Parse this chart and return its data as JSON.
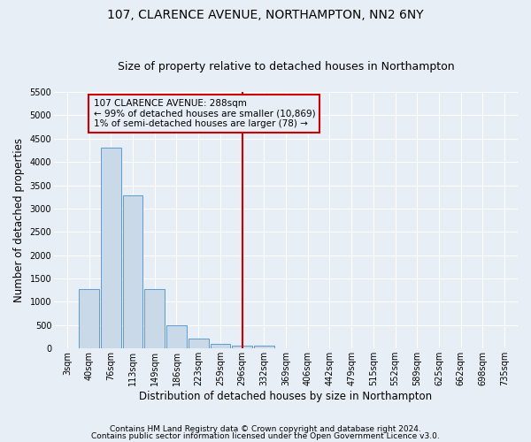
{
  "title": "107, CLARENCE AVENUE, NORTHAMPTON, NN2 6NY",
  "subtitle": "Size of property relative to detached houses in Northampton",
  "xlabel": "Distribution of detached houses by size in Northampton",
  "ylabel": "Number of detached properties",
  "footnote1": "Contains HM Land Registry data © Crown copyright and database right 2024.",
  "footnote2": "Contains public sector information licensed under the Open Government Licence v3.0.",
  "bar_labels": [
    "3sqm",
    "40sqm",
    "76sqm",
    "113sqm",
    "149sqm",
    "186sqm",
    "223sqm",
    "259sqm",
    "296sqm",
    "332sqm",
    "369sqm",
    "406sqm",
    "442sqm",
    "479sqm",
    "515sqm",
    "552sqm",
    "589sqm",
    "625sqm",
    "662sqm",
    "698sqm",
    "735sqm"
  ],
  "bar_values": [
    0,
    1270,
    4300,
    3280,
    1280,
    490,
    220,
    90,
    60,
    55,
    0,
    0,
    0,
    0,
    0,
    0,
    0,
    0,
    0,
    0,
    0
  ],
  "bar_color": "#c9d9e8",
  "bar_edge_color": "#5b9bd5",
  "ylim": [
    0,
    5500
  ],
  "yticks": [
    0,
    500,
    1000,
    1500,
    2000,
    2500,
    3000,
    3500,
    4000,
    4500,
    5000,
    5500
  ],
  "vline_x": 8,
  "vline_color": "#cc0000",
  "annotation_box_text1": "107 CLARENCE AVENUE: 288sqm",
  "annotation_box_text2": "← 99% of detached houses are smaller (10,869)",
  "annotation_box_text3": "1% of semi-detached houses are larger (78) →",
  "annotation_box_color": "#cc0000",
  "background_color": "#e8eef5",
  "grid_color": "#ffffff",
  "title_fontsize": 10,
  "subtitle_fontsize": 9,
  "axis_label_fontsize": 8.5,
  "tick_fontsize": 7,
  "footnote_fontsize": 6.5
}
